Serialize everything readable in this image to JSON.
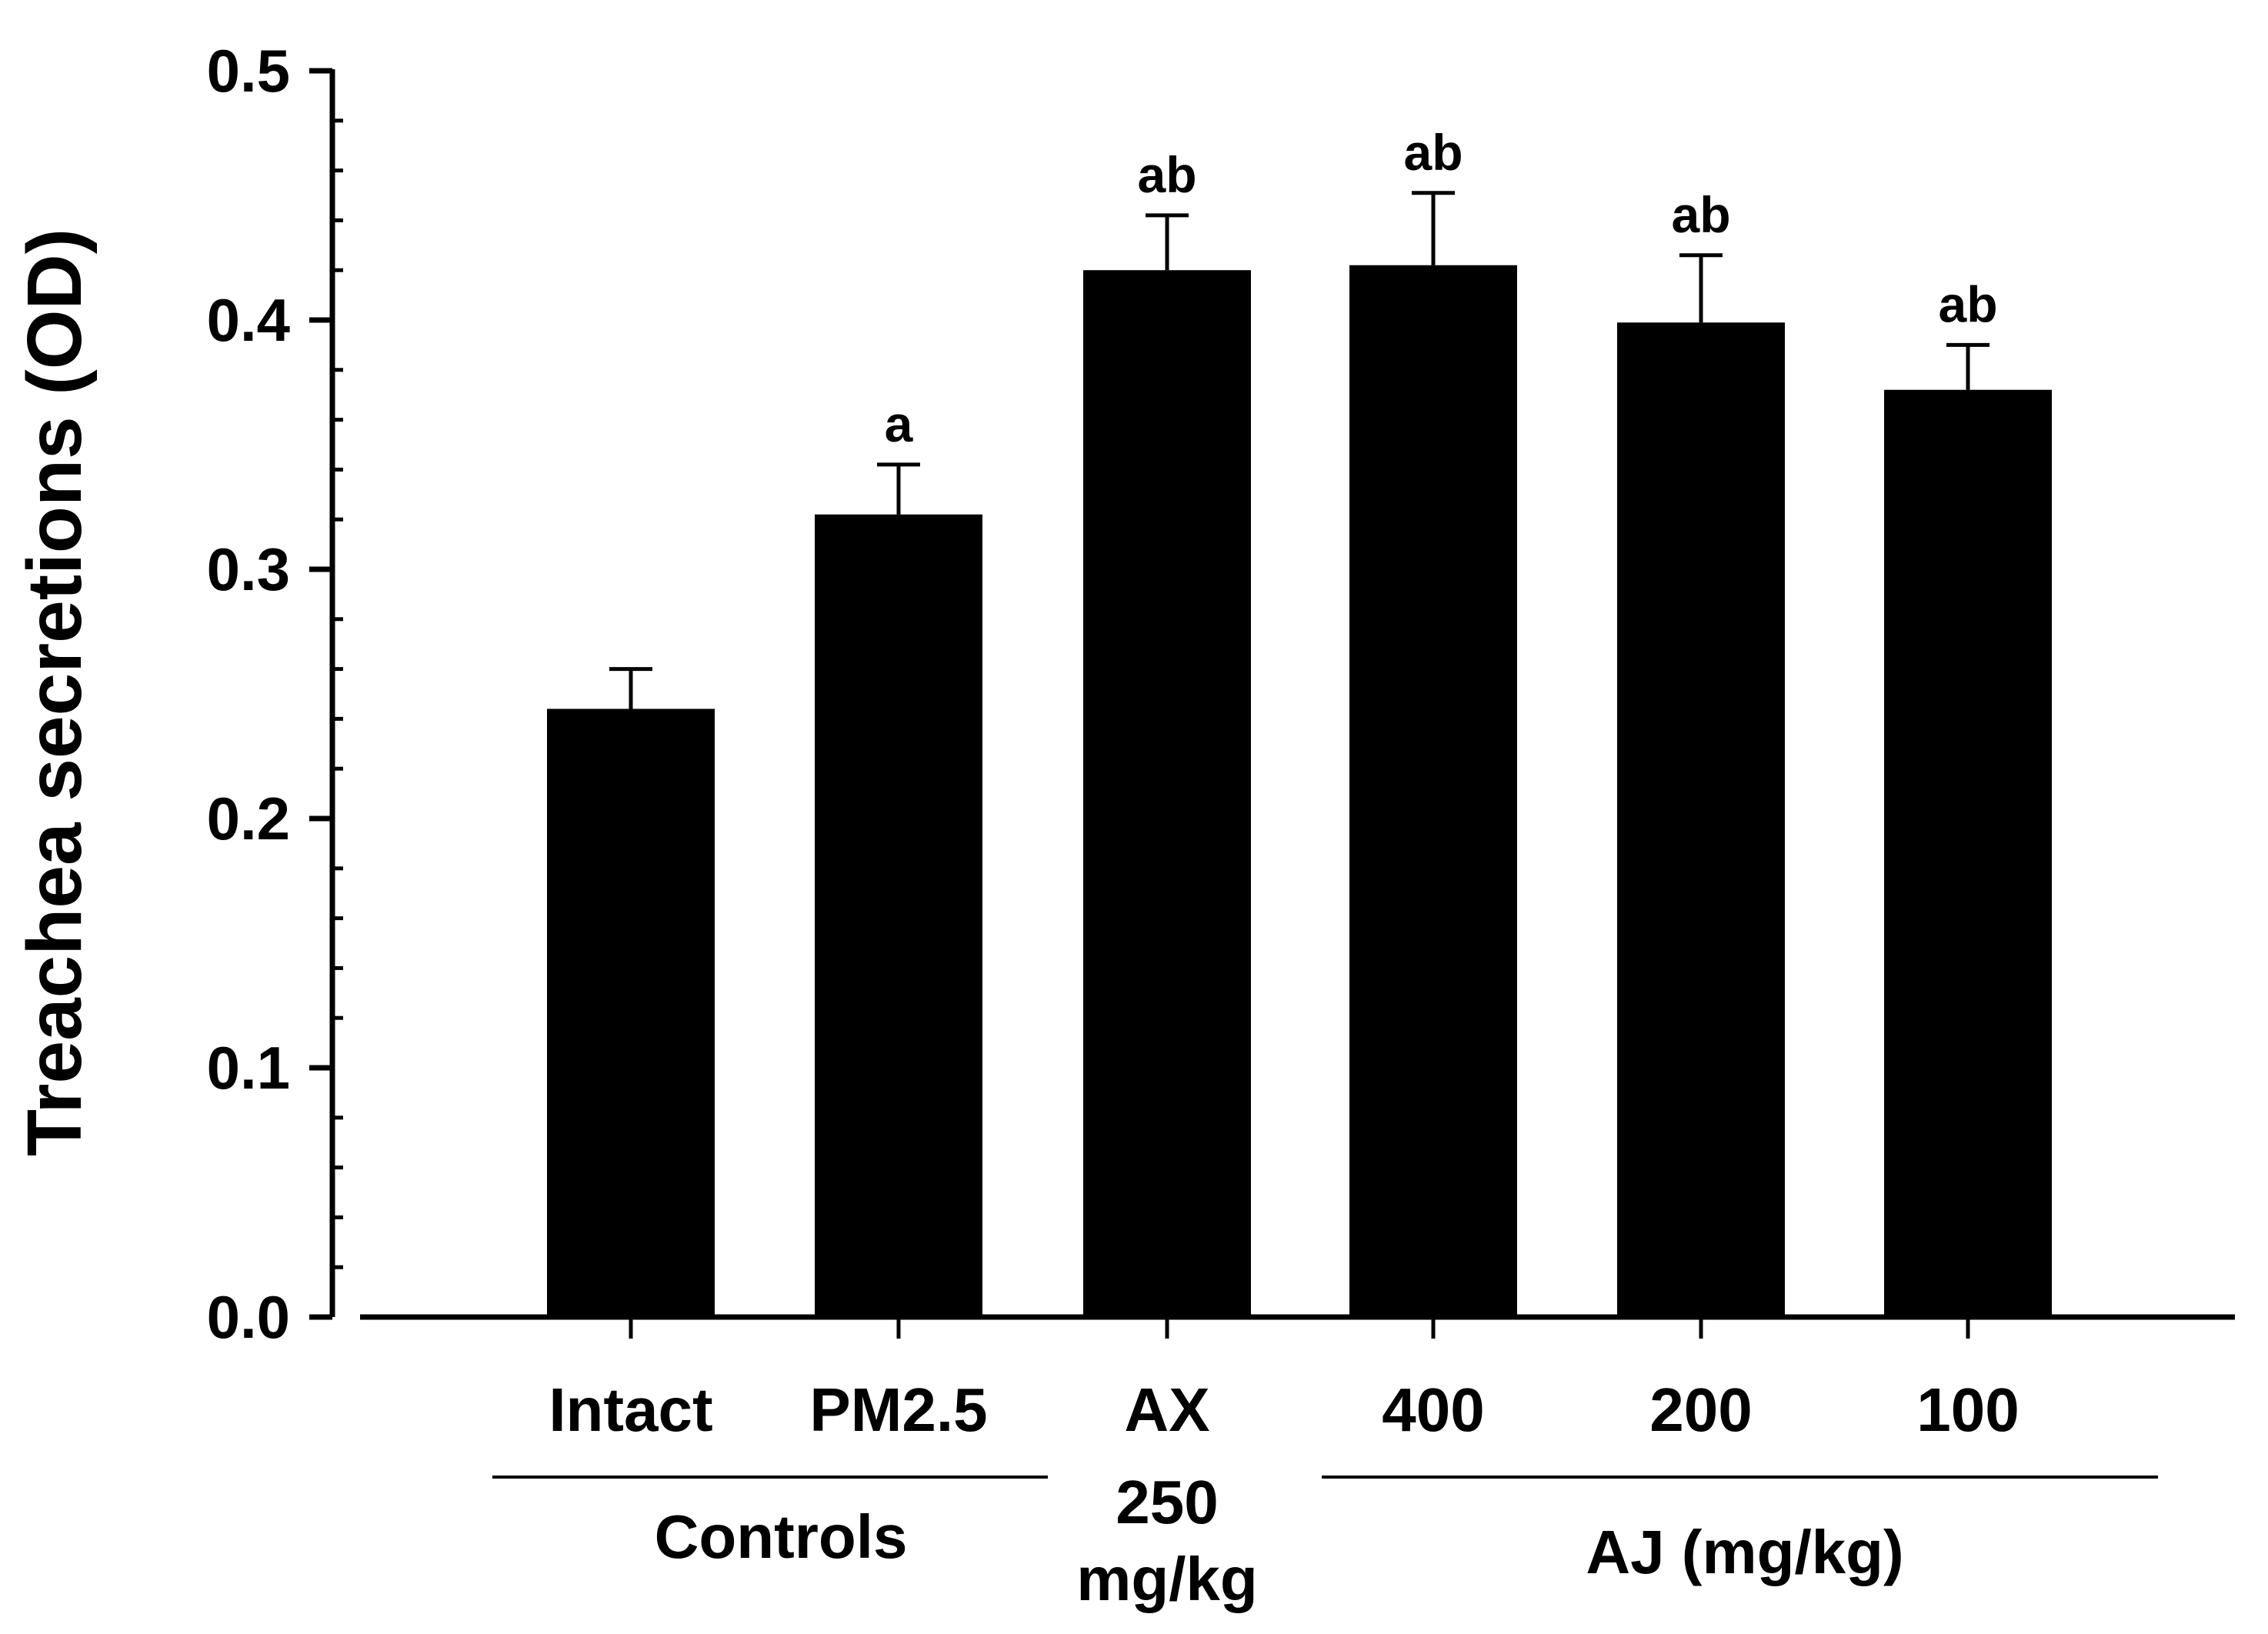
{
  "chart_data": {
    "type": "bar",
    "ylabel": "Treachea secretions (OD)",
    "ylim": [
      0,
      0.5
    ],
    "yticks": [
      "0.0",
      "0.1",
      "0.2",
      "0.3",
      "0.4",
      "0.5"
    ],
    "categories": [
      "Intact",
      "PM2.5",
      "AX",
      "400",
      "200",
      "100"
    ],
    "values": [
      0.244,
      0.322,
      0.42,
      0.422,
      0.399,
      0.372
    ],
    "errors": [
      0.016,
      0.02,
      0.022,
      0.029,
      0.027,
      0.018
    ],
    "annotations": [
      "",
      "a",
      "ab",
      "ab",
      "ab",
      "ab"
    ],
    "ax_dose_lines": [
      "250",
      "mg/kg"
    ],
    "groups": [
      {
        "label": "Controls"
      },
      {
        "label": "AJ (mg/kg)"
      }
    ],
    "bar_color": "#000000"
  }
}
